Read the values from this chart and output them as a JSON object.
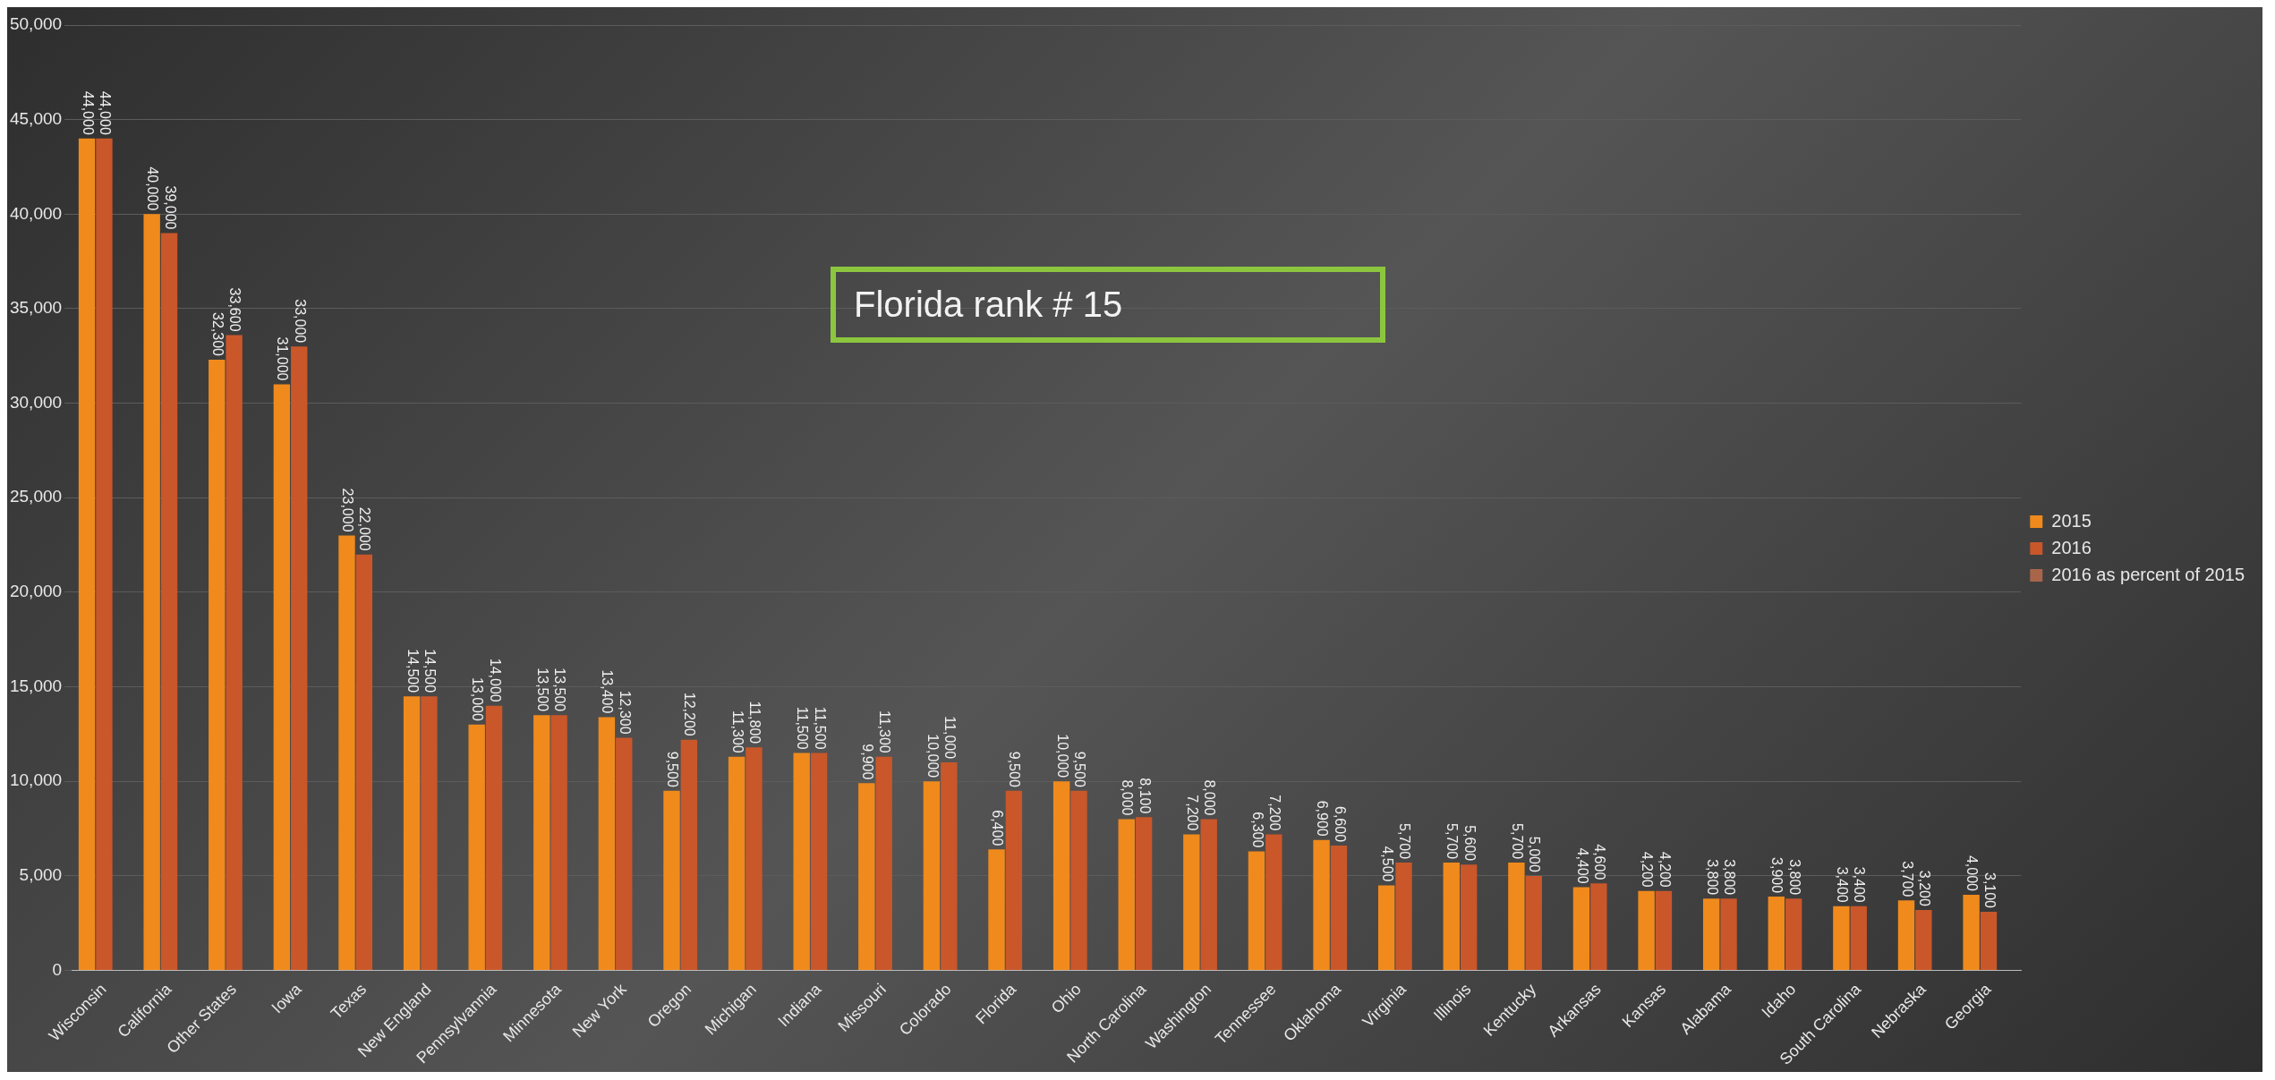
{
  "chart_data": {
    "type": "bar",
    "categories": [
      "Wisconsin",
      "California",
      "Other States",
      "Iowa",
      "Texas",
      "New England",
      "Pennsylvannia",
      "Minnesota",
      "New York",
      "Oregon",
      "Michigan",
      "Indiana",
      "Missouri",
      "Colorado",
      "Florida",
      "Ohio",
      "North Carolina",
      "Washington",
      "Tennessee",
      "Oklahoma",
      "Virginia",
      "Illinois",
      "Kentucky",
      "Arkansas",
      "Kansas",
      "Alabama",
      "Idaho",
      "South Carolina",
      "Nebraska",
      "Georgia"
    ],
    "series": [
      {
        "name": "2015",
        "color": "#f08a1c",
        "values": [
          44000,
          40000,
          32300,
          31000,
          23000,
          14500,
          13000,
          13500,
          13400,
          9500,
          11300,
          11500,
          9900,
          10000,
          6400,
          10000,
          8000,
          7200,
          6300,
          6900,
          4500,
          5700,
          5700,
          4400,
          4200,
          3800,
          3900,
          3400,
          3700,
          4000
        ],
        "value_labels": [
          "44,000",
          "40,000",
          "32,300",
          "31,000",
          "23,000",
          "14,500",
          "13,000",
          "13,500",
          "13,400",
          "9,500",
          "11,300",
          "11,500",
          "9,900",
          "10,000",
          "6,400",
          "10,000",
          "8,000",
          "7,200",
          "6,300",
          "6,900",
          "4,500",
          "5,700",
          "5,700",
          "4,400",
          "4,200",
          "3,800",
          "3,900",
          "3,400",
          "3,700",
          "4,000"
        ]
      },
      {
        "name": "2016",
        "color": "#c9572a",
        "values": [
          44000,
          39000,
          33600,
          33000,
          22000,
          14500,
          14000,
          13500,
          12300,
          12200,
          11800,
          11500,
          11300,
          11000,
          9500,
          9500,
          8100,
          8000,
          7200,
          6600,
          5700,
          5600,
          5000,
          4600,
          4200,
          3800,
          3800,
          3400,
          3200,
          3100
        ],
        "value_labels": [
          "44,000",
          "39,000",
          "33,600",
          "33,000",
          "22,000",
          "14,500",
          "14,000",
          "13,500",
          "12,300",
          "12,200",
          "11,800",
          "11,500",
          "11,300",
          "11,000",
          "9,500",
          "9,500",
          "8,100",
          "8,000",
          "7,200",
          "6,600",
          "5,700",
          "5,600",
          "5,000",
          "4,600",
          "4,200",
          "3,800",
          "3,800",
          "3,400",
          "3,200",
          "3,100"
        ]
      },
      {
        "name": "2016 as percent of 2015",
        "color": "#a8654a",
        "values": [
          0,
          0,
          0,
          0,
          0,
          0,
          0,
          0,
          0,
          0,
          0,
          0,
          0,
          0,
          0,
          0,
          0,
          0,
          0,
          0,
          0,
          0,
          0,
          0,
          0,
          0,
          0,
          0,
          0,
          0
        ]
      }
    ],
    "ylim": [
      0,
      50000
    ],
    "yticks": [
      0,
      {
        "value": 5000,
        "label": "5,000"
      },
      {
        "value": 10000,
        "label": "10,000"
      },
      {
        "value": 15000,
        "label": "15,000"
      },
      {
        "value": 20000,
        "label": "20,000"
      },
      {
        "value": 25000,
        "label": "25,000"
      },
      {
        "value": 30000,
        "label": "30,000"
      },
      {
        "value": 35000,
        "label": "35,000"
      },
      {
        "value": 40000,
        "label": "40,000"
      },
      {
        "value": 45000,
        "label": "45,000"
      },
      {
        "value": 50000,
        "label": "50,000"
      }
    ],
    "grid": "y",
    "legend": "right",
    "annotations": [
      "Florida rank # 15"
    ]
  }
}
